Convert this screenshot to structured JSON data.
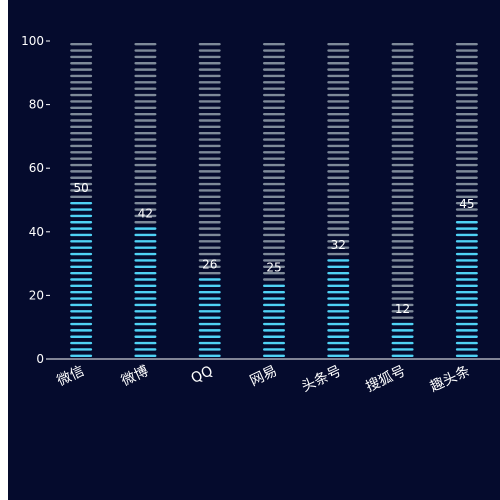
{
  "chart_data": {
    "type": "bar",
    "categories": [
      "微信",
      "微博",
      "QQ",
      "网易",
      "头条号",
      "搜狐号",
      "趣头条"
    ],
    "values": [
      50,
      42,
      26,
      25,
      32,
      12,
      45
    ],
    "ylim": [
      0,
      100
    ],
    "yticks": [
      "0",
      "20",
      "40",
      "60",
      "80",
      "100"
    ],
    "y_max_background": 100,
    "grid": false,
    "colors": {
      "background": "#050b2d",
      "filled_segment": "#4fd2f5",
      "empty_segment": "#7e8a99",
      "text": "#ffffff",
      "axis": "#ffffff"
    }
  }
}
